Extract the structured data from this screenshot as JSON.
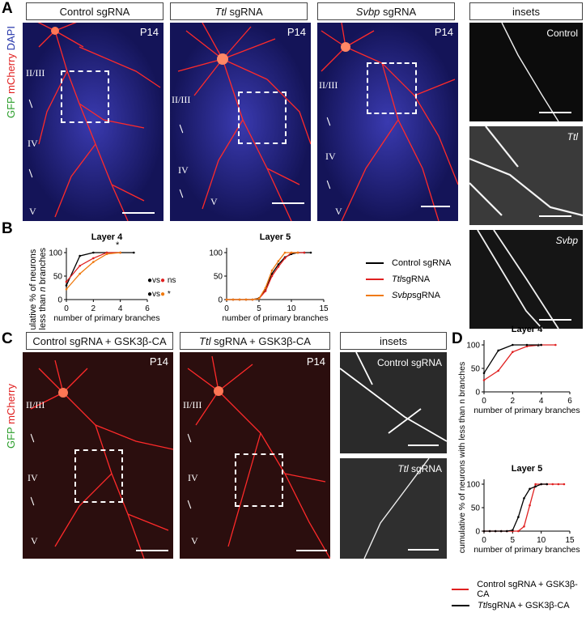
{
  "panels": {
    "A": "A",
    "B": "B",
    "C": "C",
    "D": "D"
  },
  "panelA": {
    "headers": {
      "control": "Control sgRNA",
      "ttl_italic": "Ttl",
      "ttl_rest": " sgRNA",
      "svbp_italic": "Svbp",
      "svbp_rest": " sgRNA",
      "insets": "insets"
    },
    "channel_label": {
      "gfp": "GFP",
      "mcherry": "mCherry",
      "dapi": "DAPI"
    },
    "age": "P14",
    "layers": {
      "l23": "II/III",
      "l4": "IV",
      "l5": "V",
      "dash": "/"
    },
    "inset_labels": {
      "control": "Control",
      "ttl": "Ttl",
      "svbp": "Svbp"
    }
  },
  "panelB": {
    "ylabel_1": "cumulative % of neurons",
    "ylabel_2": "with less than n branches",
    "ylabel_n": "n",
    "xlabel": "number of primary branches",
    "vs": "vs",
    "ns": "ns",
    "star": "*",
    "legend": [
      {
        "label": "Control sgRNA",
        "color": "#000000",
        "italic": ""
      },
      {
        "label": " sgRNA",
        "color": "#e02020",
        "italic": "Ttl"
      },
      {
        "label": " sgRNA",
        "color": "#f07a10",
        "italic": "Svbp"
      }
    ]
  },
  "panelC": {
    "headers": {
      "control": "Control sgRNA + GSK3β-CA",
      "ttl_italic": "Ttl",
      "ttl_rest": " sgRNA + GSK3β-CA",
      "insets": "insets"
    },
    "channel_label": {
      "gfp": "GFP",
      "mcherry": "mCherry"
    },
    "inset_labels": {
      "control": "Control sgRNA",
      "ttl_italic": "Ttl",
      "ttl_rest": " sgRNA"
    }
  },
  "panelD": {
    "ylabel": "cumulative % of neurons with less than n branches",
    "xlabel": "number of primary branches",
    "star": "*",
    "legend": [
      {
        "label": "Control sgRNA + GSK3β-CA",
        "color": "#e02020",
        "italic": ""
      },
      {
        "label": " sgRNA + GSK3β-CA",
        "color": "#000000",
        "italic": "Ttl"
      }
    ]
  },
  "chart_data": [
    {
      "type": "line",
      "title": "Layer 4",
      "xlim": [
        0,
        6
      ],
      "ylim": [
        0,
        100
      ],
      "xticks": [
        0,
        2,
        4,
        6
      ],
      "yticks": [
        0,
        50,
        100
      ],
      "xlabel": "number of primary branches",
      "series": [
        {
          "name": "Control sgRNA",
          "color": "#000000",
          "x": [
            0,
            1,
            2,
            3,
            4,
            5
          ],
          "y": [
            30,
            93,
            100,
            100,
            100,
            100
          ]
        },
        {
          "name": "Ttl sgRNA",
          "color": "#e02020",
          "x": [
            0,
            1,
            2,
            3,
            4
          ],
          "y": [
            38,
            72,
            88,
            100,
            100
          ]
        },
        {
          "name": "Svbp sgRNA",
          "color": "#f07a10",
          "x": [
            0,
            1,
            2,
            3,
            4
          ],
          "y": [
            22,
            55,
            80,
            97,
            100
          ]
        }
      ],
      "annotations": [
        "*"
      ]
    },
    {
      "type": "line",
      "title": "Layer 5",
      "xlim": [
        0,
        15
      ],
      "ylim": [
        0,
        100
      ],
      "xticks": [
        0,
        5,
        10,
        15
      ],
      "yticks": [
        0,
        50,
        100
      ],
      "xlabel": "number of primary branches",
      "series": [
        {
          "name": "Control sgRNA",
          "color": "#000000",
          "x": [
            0,
            1,
            2,
            3,
            4,
            5,
            6,
            7,
            8,
            9,
            10,
            11,
            12,
            13
          ],
          "y": [
            0,
            0,
            0,
            0,
            0,
            3,
            20,
            55,
            75,
            90,
            97,
            100,
            100,
            100
          ]
        },
        {
          "name": "Ttl sgRNA",
          "color": "#e02020",
          "x": [
            0,
            1,
            2,
            3,
            4,
            5,
            6,
            7,
            8,
            9,
            10,
            11,
            12
          ],
          "y": [
            0,
            0,
            0,
            0,
            0,
            2,
            18,
            50,
            70,
            88,
            100,
            100,
            100
          ]
        },
        {
          "name": "Svbp sgRNA",
          "color": "#f07a10",
          "x": [
            0,
            1,
            2,
            3,
            4,
            5,
            6,
            7,
            8,
            9,
            10,
            11
          ],
          "y": [
            0,
            0,
            0,
            0,
            0,
            2,
            25,
            62,
            82,
            100,
            100,
            100
          ]
        }
      ]
    },
    {
      "type": "line",
      "title": "Layer 4",
      "xlim": [
        0,
        6
      ],
      "ylim": [
        0,
        100
      ],
      "xticks": [
        0,
        2,
        4,
        6
      ],
      "yticks": [
        0,
        50,
        100
      ],
      "xlabel": "number of primary branches",
      "series": [
        {
          "name": "Control sgRNA + GSK3β-CA",
          "color": "#e02020",
          "x": [
            0,
            1,
            2,
            3,
            4,
            5
          ],
          "y": [
            25,
            45,
            85,
            97,
            100,
            100
          ]
        },
        {
          "name": "Ttl sgRNA + GSK3β-CA",
          "color": "#000000",
          "x": [
            0,
            1,
            2,
            3,
            4
          ],
          "y": [
            40,
            88,
            100,
            100,
            100
          ]
        }
      ],
      "annotations": [
        "*"
      ]
    },
    {
      "type": "line",
      "title": "Layer 5",
      "xlim": [
        0,
        15
      ],
      "ylim": [
        0,
        100
      ],
      "xticks": [
        0,
        5,
        10,
        15
      ],
      "yticks": [
        0,
        50,
        100
      ],
      "xlabel": "number of primary branches",
      "series": [
        {
          "name": "Control sgRNA + GSK3β-CA",
          "color": "#e02020",
          "x": [
            0,
            1,
            2,
            3,
            4,
            5,
            6,
            7,
            8,
            9,
            10,
            11,
            12,
            13,
            14
          ],
          "y": [
            0,
            0,
            0,
            0,
            0,
            0,
            0,
            10,
            55,
            100,
            100,
            100,
            100,
            100,
            100
          ]
        },
        {
          "name": "Ttl sgRNA + GSK3β-CA",
          "color": "#000000",
          "x": [
            0,
            1,
            2,
            3,
            4,
            5,
            6,
            7,
            8,
            9,
            10,
            11
          ],
          "y": [
            0,
            0,
            0,
            0,
            0,
            2,
            30,
            70,
            90,
            95,
            100,
            100
          ]
        }
      ]
    }
  ]
}
